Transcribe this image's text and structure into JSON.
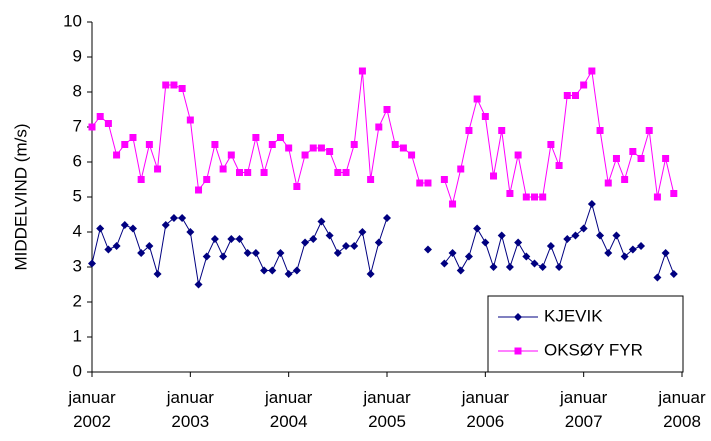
{
  "chart_data": {
    "type": "line",
    "y_label": "MIDDELVIND (m/s)",
    "categories": [
      "januar 2002",
      null,
      null,
      null,
      null,
      null,
      null,
      null,
      null,
      null,
      null,
      null,
      "januar 2003",
      null,
      null,
      null,
      null,
      null,
      null,
      null,
      null,
      null,
      null,
      null,
      "januar 2004",
      null,
      null,
      null,
      null,
      null,
      null,
      null,
      null,
      null,
      null,
      null,
      "januar 2005",
      null,
      null,
      null,
      null,
      null,
      null,
      null,
      null,
      null,
      null,
      null,
      "januar 2006",
      null,
      null,
      null,
      null,
      null,
      null,
      null,
      null,
      null,
      null,
      null,
      "januar 2007",
      null,
      null,
      null,
      null,
      null,
      null,
      null,
      null,
      null,
      null,
      null,
      "januar 2008"
    ],
    "series": [
      {
        "name": "KJEVIK",
        "color": "#000080",
        "marker": "diamond",
        "values": [
          3.1,
          4.1,
          3.5,
          3.6,
          4.2,
          4.1,
          3.4,
          3.6,
          2.8,
          4.2,
          4.4,
          4.4,
          4.0,
          2.5,
          3.3,
          3.8,
          3.3,
          3.8,
          3.8,
          3.4,
          3.4,
          2.9,
          2.9,
          3.4,
          2.8,
          2.9,
          3.7,
          3.8,
          4.3,
          3.9,
          3.4,
          3.6,
          3.6,
          4.0,
          2.8,
          3.7,
          4.4,
          null,
          null,
          null,
          null,
          3.5,
          null,
          3.1,
          3.4,
          2.9,
          3.3,
          4.1,
          3.7,
          3.0,
          3.9,
          3.0,
          3.7,
          3.3,
          3.1,
          3.0,
          3.6,
          3.0,
          3.8,
          3.9,
          4.1,
          4.8,
          3.9,
          3.4,
          3.9,
          3.3,
          3.5,
          3.6,
          null,
          2.7,
          3.4,
          2.8,
          null
        ]
      },
      {
        "name": "OKSØY FYR",
        "color": "#ff00ff",
        "marker": "square",
        "values": [
          7.0,
          7.3,
          7.1,
          6.2,
          6.5,
          6.7,
          5.5,
          6.5,
          5.8,
          8.2,
          8.2,
          8.1,
          7.2,
          5.2,
          5.5,
          6.5,
          5.8,
          6.2,
          5.7,
          5.7,
          6.7,
          5.7,
          6.5,
          6.7,
          6.4,
          5.3,
          6.2,
          6.4,
          6.4,
          6.3,
          5.7,
          5.7,
          6.5,
          8.6,
          5.5,
          7.0,
          7.5,
          6.5,
          6.4,
          6.2,
          5.4,
          5.4,
          null,
          5.5,
          4.8,
          5.8,
          6.9,
          7.8,
          7.3,
          5.6,
          6.9,
          5.1,
          6.2,
          5.0,
          5.0,
          5.0,
          6.5,
          5.9,
          7.9,
          7.9,
          8.2,
          8.6,
          6.9,
          5.4,
          6.1,
          5.5,
          6.3,
          6.1,
          6.9,
          5.0,
          6.1,
          5.1,
          null
        ]
      }
    ],
    "ylim": [
      0,
      10
    ],
    "yticks": [
      0,
      1,
      2,
      3,
      4,
      5,
      6,
      7,
      8,
      9,
      10
    ],
    "grid": false,
    "legend": "lower right"
  }
}
